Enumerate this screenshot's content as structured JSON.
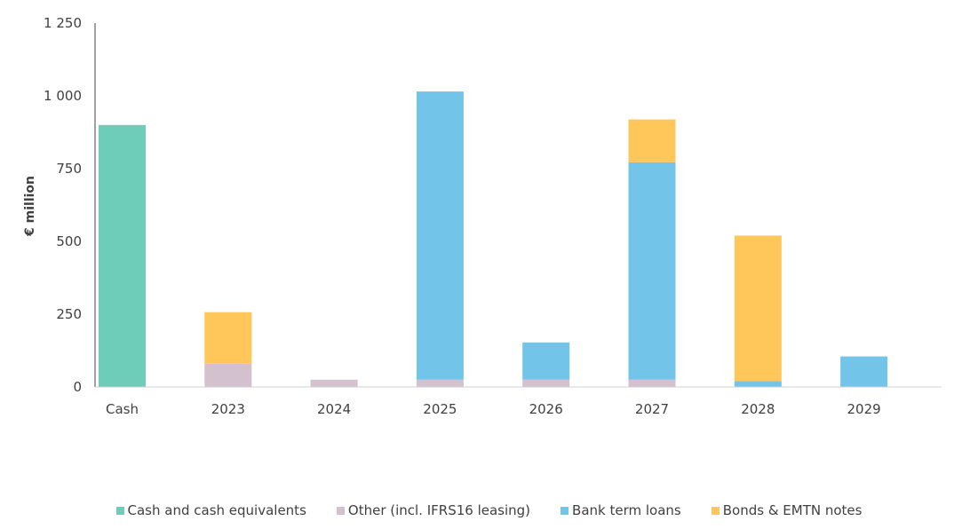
{
  "chart_data": {
    "type": "bar",
    "stacked": true,
    "categories": [
      "Cash",
      "2023",
      "2024",
      "2025",
      "2026",
      "2027",
      "2028",
      "2029"
    ],
    "ylabel": "€ million",
    "ylim": [
      0,
      1250
    ],
    "yticks": [
      0,
      250,
      500,
      750,
      1000,
      1250
    ],
    "ytick_labels": [
      "0",
      "250",
      "500",
      "750",
      "1 000",
      "1 250"
    ],
    "grid": false,
    "legend_position": "bottom",
    "series": [
      {
        "name": "Cash and cash equivalents",
        "color": "#6DCDB8",
        "values": [
          900,
          0,
          0,
          0,
          0,
          0,
          0,
          0
        ]
      },
      {
        "name": "Other (incl. IFRS16 leasing)",
        "color": "#D3C1CF",
        "values": [
          0,
          80,
          25,
          25,
          25,
          25,
          0,
          0
        ]
      },
      {
        "name": "Bank term loans",
        "color": "#72C5E8",
        "values": [
          0,
          0,
          0,
          990,
          128,
          747,
          20,
          105
        ]
      },
      {
        "name": "Bonds & EMTN notes",
        "color": "#FFC65A",
        "values": [
          0,
          177,
          0,
          0,
          0,
          147,
          500,
          0
        ]
      }
    ]
  }
}
